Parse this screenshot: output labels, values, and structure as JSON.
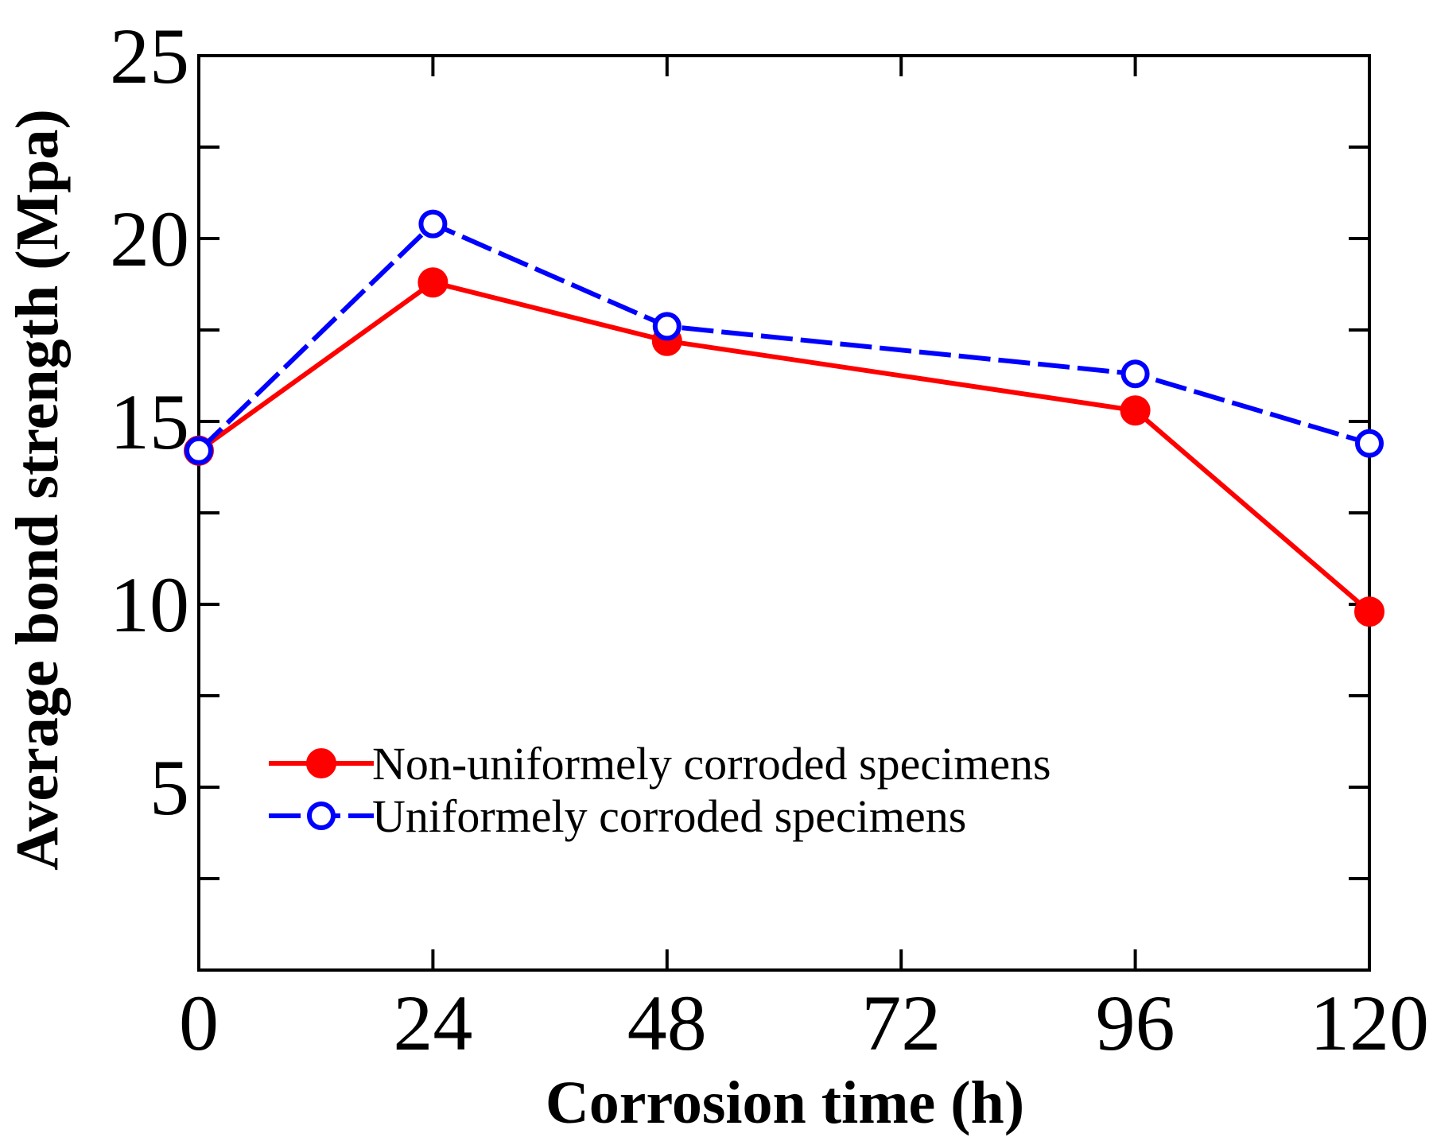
{
  "chart_data": {
    "type": "line",
    "title": "",
    "xlabel": "Corrosion time (h)",
    "ylabel": "Average bond strength (Mpa)",
    "xlim": [
      0,
      120
    ],
    "ylim": [
      0,
      25
    ],
    "xticks": [
      0,
      24,
      48,
      72,
      96,
      120
    ],
    "xtick_labels": [
      "0",
      "24",
      "48",
      "72",
      "96",
      "120"
    ],
    "yticks": [
      0,
      2.5,
      5,
      7.5,
      10,
      12.5,
      15,
      17.5,
      20,
      22.5,
      25
    ],
    "ytick_labels": [
      "5",
      "10",
      "15",
      "20",
      "25"
    ],
    "ytick_label_values": [
      5,
      10,
      15,
      20,
      25
    ],
    "grid": false,
    "legend_position": "lower-left",
    "series": [
      {
        "name": "Non-uniformely corroded specimens",
        "color": "#ff0000",
        "line_style": "solid",
        "marker": "filled-circle",
        "x": [
          0,
          24,
          48,
          96,
          120
        ],
        "values": [
          14.2,
          18.8,
          17.2,
          15.3,
          9.8
        ]
      },
      {
        "name": "Uniformely corroded specimens",
        "color": "#0000ff",
        "line_style": "dashed",
        "marker": "open-circle",
        "x": [
          0,
          24,
          48,
          96,
          120
        ],
        "values": [
          14.2,
          20.4,
          17.6,
          16.3,
          14.4
        ]
      }
    ]
  }
}
